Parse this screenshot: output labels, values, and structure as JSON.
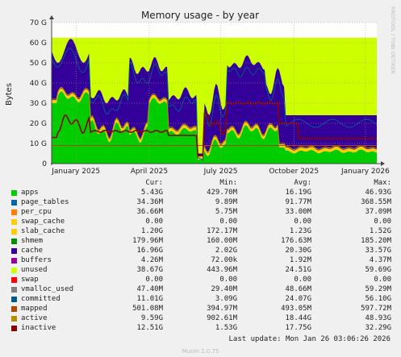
{
  "chart_data": {
    "type": "area",
    "title": "Memory usage - by year",
    "ylabel": "Bytes",
    "ylim": [
      0,
      70
    ],
    "yunit": "G",
    "yticks": [
      "0",
      "10 G",
      "20 G",
      "30 G",
      "40 G",
      "50 G",
      "60 G",
      "70 G"
    ],
    "xticks": [
      "January 2025",
      "April 2025",
      "July 2025",
      "October 2025",
      "January 2026"
    ],
    "grid": true,
    "legend_placement": "bottom",
    "legend_columns": [
      "Cur:",
      "Min:",
      "Avg:",
      "Max:"
    ],
    "series": [
      {
        "name": "apps",
        "color": "#00cc00",
        "cur": "5.43G",
        "min": "429.70M",
        "avg": "16.19G",
        "max": "46.93G"
      },
      {
        "name": "page_tables",
        "color": "#0066b3",
        "cur": "34.36M",
        "min": "9.89M",
        "avg": "91.77M",
        "max": "368.55M"
      },
      {
        "name": "per_cpu",
        "color": "#ff8000",
        "cur": "36.66M",
        "min": "5.75M",
        "avg": "33.00M",
        "max": "37.09M"
      },
      {
        "name": "swap_cache",
        "color": "#ffcc00",
        "cur": "0.00",
        "min": "0.00",
        "avg": "0.00",
        "max": "0.00"
      },
      {
        "name": "slab_cache",
        "color": "#ffcc00",
        "cur": "1.20G",
        "min": "172.17M",
        "avg": "1.23G",
        "max": "1.52G"
      },
      {
        "name": "shmem",
        "color": "#008f00",
        "cur": "179.96M",
        "min": "160.00M",
        "avg": "176.63M",
        "max": "185.20M"
      },
      {
        "name": "cache",
        "color": "#330099",
        "cur": "16.96G",
        "min": "2.02G",
        "avg": "20.30G",
        "max": "33.57G"
      },
      {
        "name": "buffers",
        "color": "#990099",
        "cur": "4.26M",
        "min": "72.00k",
        "avg": "1.92M",
        "max": "4.37M"
      },
      {
        "name": "unused",
        "color": "#ccff00",
        "cur": "38.67G",
        "min": "443.96M",
        "avg": "24.51G",
        "max": "59.69G"
      },
      {
        "name": "swap",
        "color": "#ff0000",
        "cur": "0.00",
        "min": "0.00",
        "avg": "0.00",
        "max": "0.00"
      },
      {
        "name": "vmalloc_used",
        "color": "#808080",
        "cur": "47.40M",
        "min": "29.40M",
        "avg": "48.66M",
        "max": "59.29M"
      },
      {
        "name": "committed",
        "color": "#005a8c",
        "cur": "11.01G",
        "min": "3.09G",
        "avg": "24.07G",
        "max": "56.10G"
      },
      {
        "name": "mapped",
        "color": "#b34700",
        "cur": "501.08M",
        "min": "394.97M",
        "avg": "493.05M",
        "max": "597.72M"
      },
      {
        "name": "active",
        "color": "#b38f00",
        "cur": "9.59G",
        "min": "902.61M",
        "avg": "18.44G",
        "max": "48.93G"
      },
      {
        "name": "inactive",
        "color": "#8b0000",
        "cur": "12.51G",
        "min": "1.53G",
        "avg": "17.75G",
        "max": "32.29G"
      }
    ]
  },
  "last_update": "Last update: Mon Jan 26 03:06:26 2026",
  "munin_version": "Munin 2.0.75",
  "side_label": "RRDTOOL / TOBI OETIKER"
}
